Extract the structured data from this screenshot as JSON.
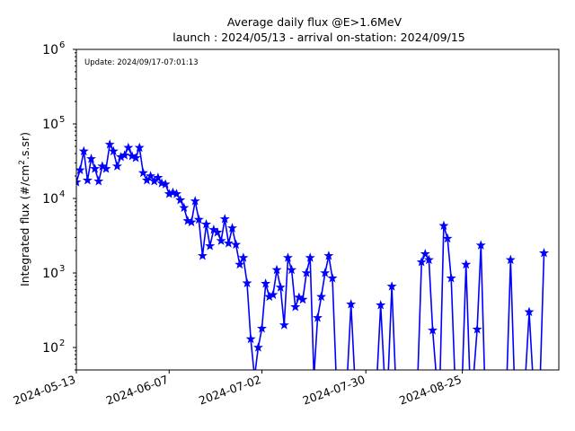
{
  "chart_data": {
    "type": "line",
    "title": "Average daily flux @E>1.6MeV",
    "subtitle": "launch : 2024/05/13 - arrival on-station: 2024/09/15",
    "annotation": "Update: 2024/09/17-07:01:13",
    "xlabel": "",
    "ylabel": "Integrated flux (#/cm².s.sr)",
    "ylabel_base": "Integrated flux (#/cm",
    "ylabel_sup": "2",
    "ylabel_tail": ".s.sr)",
    "y_scale": "log",
    "ylim": [
      50,
      1000000
    ],
    "xlim": [
      "2024-05-13",
      "2024-09-20"
    ],
    "x_ticks": [
      "2024-05-13",
      "2024-06-07",
      "2024-07-02",
      "2024-07-30",
      "2024-08-25"
    ],
    "y_ticks": [
      {
        "base": "10",
        "exp": "2",
        "value": 100
      },
      {
        "base": "10",
        "exp": "3",
        "value": 1000
      },
      {
        "base": "10",
        "exp": "4",
        "value": 10000
      },
      {
        "base": "10",
        "exp": "5",
        "value": 100000
      },
      {
        "base": "10",
        "exp": "6",
        "value": 1000000
      }
    ],
    "grid": false,
    "color": "#0000ff",
    "marker": "star",
    "series": [
      {
        "points": [
          [
            "2024-05-13",
            16500
          ],
          [
            "2024-05-14",
            24000
          ],
          [
            "2024-05-15",
            43000
          ],
          [
            "2024-05-16",
            17500
          ],
          [
            "2024-05-17",
            34000
          ],
          [
            "2024-05-18",
            25000
          ],
          [
            "2024-05-19",
            17000
          ],
          [
            "2024-05-20",
            27000
          ],
          [
            "2024-05-21",
            25000
          ],
          [
            "2024-05-22",
            53000
          ],
          [
            "2024-05-23",
            43000
          ],
          [
            "2024-05-24",
            27000
          ],
          [
            "2024-05-25",
            36000
          ],
          [
            "2024-05-26",
            38000
          ],
          [
            "2024-05-27",
            48000
          ],
          [
            "2024-05-28",
            37000
          ],
          [
            "2024-05-29",
            35000
          ],
          [
            "2024-05-30",
            48000
          ],
          [
            "2024-05-31",
            22000
          ],
          [
            "2024-06-01",
            17500
          ],
          [
            "2024-06-02",
            20000
          ],
          [
            "2024-06-03",
            17000
          ],
          [
            "2024-06-04",
            19000
          ],
          [
            "2024-06-05",
            16000
          ],
          [
            "2024-06-06",
            15500
          ],
          [
            "2024-06-07",
            11500
          ],
          [
            "2024-06-08",
            12000
          ],
          [
            "2024-06-09",
            11500
          ],
          [
            "2024-06-10",
            9500
          ],
          [
            "2024-06-11",
            7500
          ],
          [
            "2024-06-12",
            5000
          ],
          [
            "2024-06-13",
            4800
          ],
          [
            "2024-06-14",
            9200
          ],
          [
            "2024-06-15",
            5200
          ],
          [
            "2024-06-16",
            1700
          ],
          [
            "2024-06-17",
            4500
          ],
          [
            "2024-06-18",
            2300
          ],
          [
            "2024-06-19",
            3800
          ],
          [
            "2024-06-20",
            3500
          ],
          [
            "2024-06-21",
            2700
          ],
          [
            "2024-06-22",
            5300
          ],
          [
            "2024-06-23",
            2500
          ],
          [
            "2024-06-24",
            4000
          ],
          [
            "2024-06-25",
            2400
          ],
          [
            "2024-06-26",
            1300
          ],
          [
            "2024-06-27",
            1600
          ],
          [
            "2024-06-28",
            730
          ],
          [
            "2024-06-29",
            130
          ],
          [
            "2024-06-30",
            40
          ],
          [
            "2024-07-01",
            100
          ],
          [
            "2024-07-02",
            180
          ],
          [
            "2024-07-03",
            720
          ],
          [
            "2024-07-04",
            480
          ],
          [
            "2024-07-05",
            510
          ],
          [
            "2024-07-06",
            1100
          ],
          [
            "2024-07-07",
            640
          ],
          [
            "2024-07-08",
            200
          ],
          [
            "2024-07-09",
            1600
          ],
          [
            "2024-07-10",
            1100
          ],
          [
            "2024-07-11",
            350
          ],
          [
            "2024-07-12",
            470
          ],
          [
            "2024-07-13",
            440
          ],
          [
            "2024-07-14",
            1000
          ],
          [
            "2024-07-15",
            1600
          ],
          [
            "2024-07-16",
            40
          ],
          [
            "2024-07-17",
            250
          ],
          [
            "2024-07-18",
            480
          ],
          [
            "2024-07-19",
            1000
          ],
          [
            "2024-07-20",
            1700
          ],
          [
            "2024-07-21",
            850
          ],
          [
            "2024-07-22",
            40
          ],
          [
            "2024-07-25",
            40
          ],
          [
            "2024-07-26",
            380
          ],
          [
            "2024-07-27",
            40
          ],
          [
            "2024-08-02",
            40
          ],
          [
            "2024-08-03",
            370
          ],
          [
            "2024-08-04",
            40
          ],
          [
            "2024-08-05",
            40
          ],
          [
            "2024-08-06",
            660
          ],
          [
            "2024-08-07",
            40
          ],
          [
            "2024-08-13",
            40
          ],
          [
            "2024-08-14",
            1400
          ],
          [
            "2024-08-15",
            1800
          ],
          [
            "2024-08-16",
            1500
          ],
          [
            "2024-08-17",
            170
          ],
          [
            "2024-08-18",
            40
          ],
          [
            "2024-08-19",
            40
          ],
          [
            "2024-08-20",
            4300
          ],
          [
            "2024-08-21",
            2900
          ],
          [
            "2024-08-22",
            850
          ],
          [
            "2024-08-23",
            40
          ],
          [
            "2024-08-25",
            40
          ],
          [
            "2024-08-26",
            1300
          ],
          [
            "2024-08-27",
            40
          ],
          [
            "2024-08-28",
            40
          ],
          [
            "2024-08-29",
            175
          ],
          [
            "2024-08-30",
            2350
          ],
          [
            "2024-08-31",
            40
          ],
          [
            "2024-09-06",
            40
          ],
          [
            "2024-09-07",
            1500
          ],
          [
            "2024-09-08",
            40
          ],
          [
            "2024-09-11",
            40
          ],
          [
            "2024-09-12",
            300
          ],
          [
            "2024-09-13",
            40
          ],
          [
            "2024-09-15",
            40
          ],
          [
            "2024-09-16",
            1850
          ]
        ]
      }
    ]
  }
}
